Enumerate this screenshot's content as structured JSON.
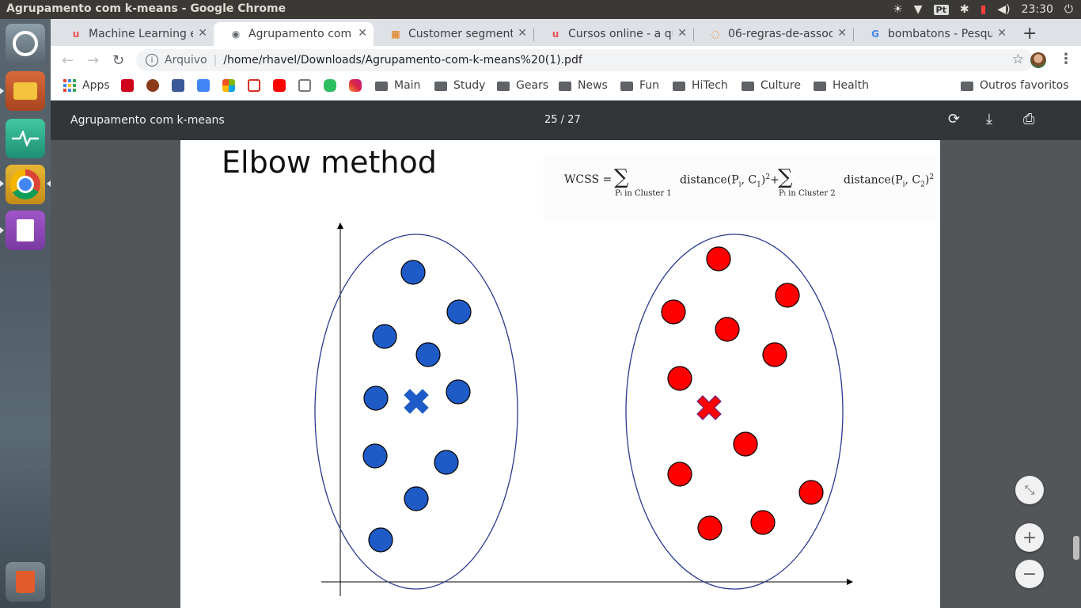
{
  "system": {
    "window_title": "Agrupamento com k-means - Google Chrome",
    "lang": "Pt",
    "clock": "23:30"
  },
  "tabs": [
    {
      "label": "Machine Learning e",
      "favicon": "udemy-icon",
      "active": false
    },
    {
      "label": "Agrupamento com k",
      "favicon": "globe-icon",
      "active": true
    },
    {
      "label": "Customer segmenta",
      "favicon": "box-icon",
      "active": false
    },
    {
      "label": "Cursos online - a qu",
      "favicon": "udemy-icon",
      "active": false
    },
    {
      "label": "06-regras-de-associa",
      "favicon": "loading-icon",
      "active": false
    },
    {
      "label": "bombatons - Pesqui",
      "favicon": "google-icon",
      "active": false
    }
  ],
  "omnibox": {
    "security_label": "Arquivo",
    "url": "/home/rhavel/Downloads/Agrupamento-com-k-means%20(1).pdf"
  },
  "bookmarks": {
    "apps": "Apps",
    "folders": [
      "Main",
      "Study",
      "Gears",
      "News",
      "Fun",
      "HiTech",
      "Culture",
      "Health"
    ],
    "other": "Outros favoritos"
  },
  "pdf": {
    "title": "Agrupamento com k-means",
    "page_indicator": "25 / 27"
  },
  "slide": {
    "title": "Elbow method",
    "formula": {
      "lhs": "WCSS =",
      "term1": "distance(P",
      "sub_i": "i",
      "mid": ", C",
      "c1": "1",
      "close": ")",
      "sq": "2",
      "plus": "+",
      "c2": "2",
      "under1": "P",
      "under1_rest": " in Cluster 1",
      "under2_rest": " in Cluster 2"
    },
    "colors": {
      "cluster1": "#1f5bc6",
      "cluster2": "#ff0000",
      "ellipse": "#2b3a8f"
    }
  }
}
